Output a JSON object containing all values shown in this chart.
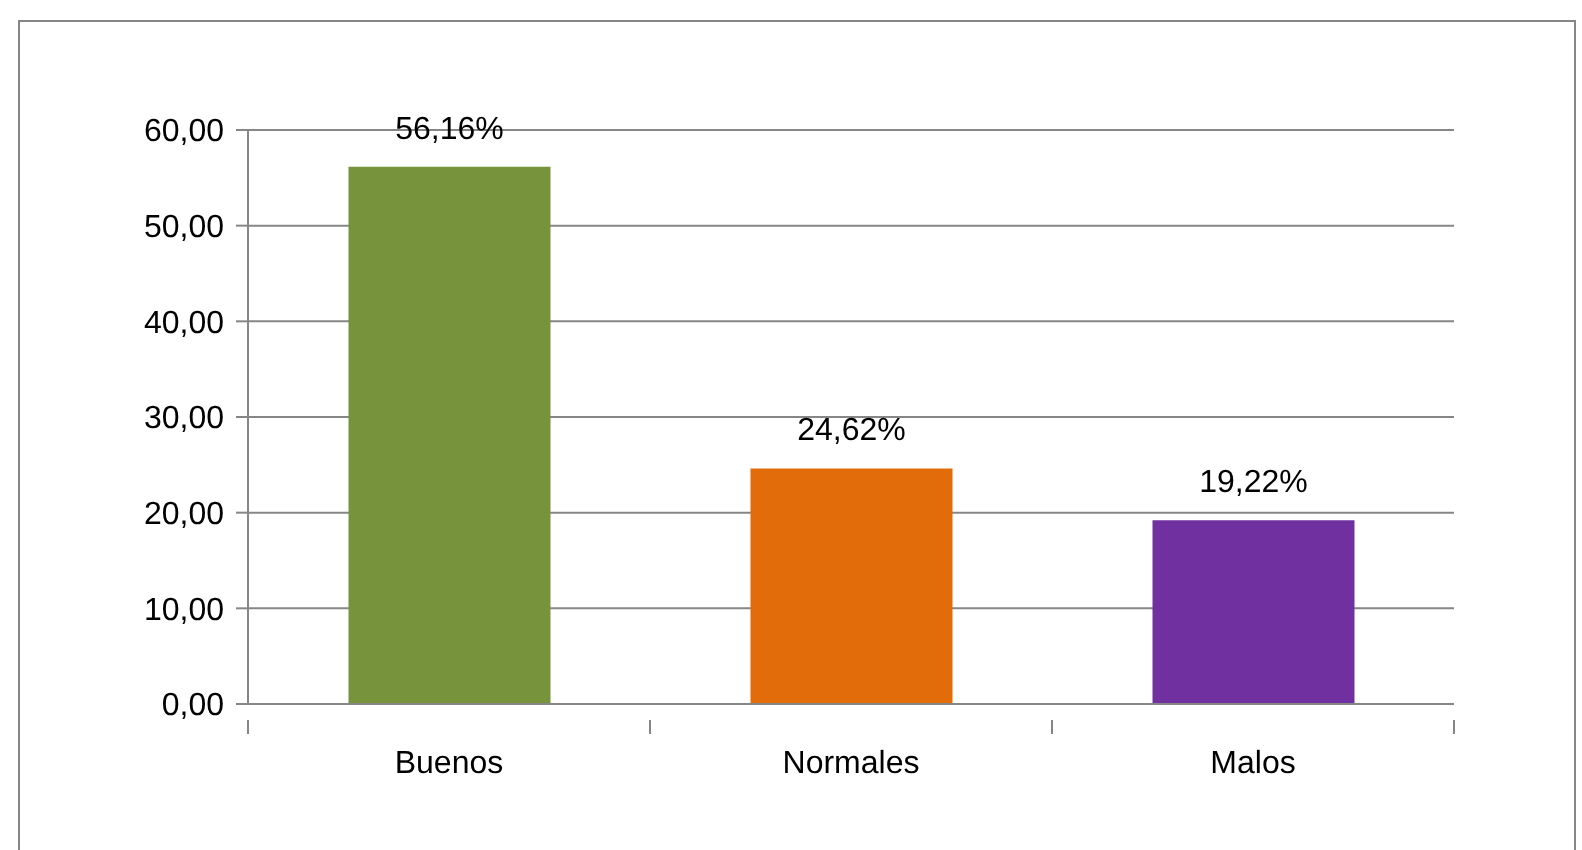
{
  "chart_data": {
    "type": "bar",
    "categories": [
      "Buenos",
      "Normales",
      "Malos"
    ],
    "values": [
      56.16,
      24.62,
      19.22
    ],
    "colors": [
      "#77933c",
      "#e36c0a",
      "#7030a0"
    ],
    "value_labels": [
      "56,16%",
      "24,62%",
      "19,22%"
    ],
    "ylim": [
      0,
      60
    ],
    "yticks": [
      {
        "value": 0,
        "label": "0,00"
      },
      {
        "value": 10,
        "label": "10,00"
      },
      {
        "value": 20,
        "label": "20,00"
      },
      {
        "value": 30,
        "label": "30,00"
      },
      {
        "value": 40,
        "label": "40,00"
      },
      {
        "value": 50,
        "label": "50,00"
      },
      {
        "value": 60,
        "label": "60,00"
      }
    ],
    "grid": "y"
  }
}
